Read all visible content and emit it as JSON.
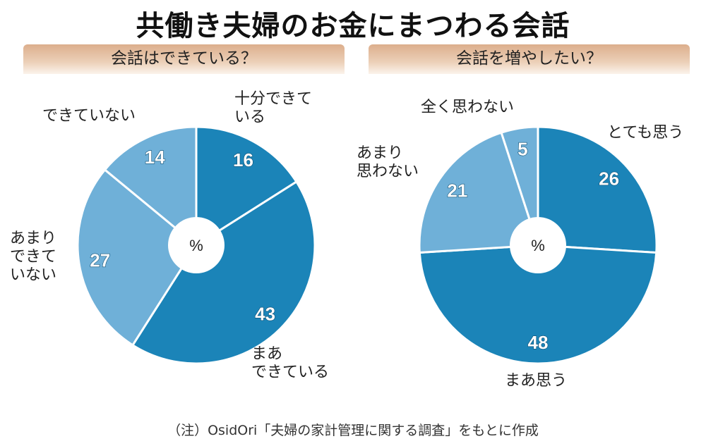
{
  "title": "共働き夫婦のお金にまつわる会話",
  "note": "（注）OsidOri「夫婦の家計管理に関する調査」をもとに作成",
  "colors": {
    "dark": "#1b84b8",
    "light": "#6fb0d8",
    "separator": "#ffffff"
  },
  "chart_data": [
    {
      "type": "pie",
      "title": "会話はできている？",
      "center_label": "%",
      "categories": [
        "十分できて\nいる",
        "まあ\nできている",
        "あまり\nできて\nいない",
        "できていない"
      ],
      "values": [
        16,
        43,
        27,
        14
      ],
      "shades": [
        "dark",
        "dark",
        "light",
        "light"
      ],
      "unit": "%"
    },
    {
      "type": "pie",
      "title": "会話を増やしたい？",
      "center_label": "%",
      "categories": [
        "とても思う",
        "まあ思う",
        "あまり\n思わない",
        "全く思わない"
      ],
      "values": [
        26,
        48,
        21,
        5
      ],
      "shades": [
        "dark",
        "dark",
        "light",
        "light"
      ],
      "unit": "%"
    }
  ]
}
